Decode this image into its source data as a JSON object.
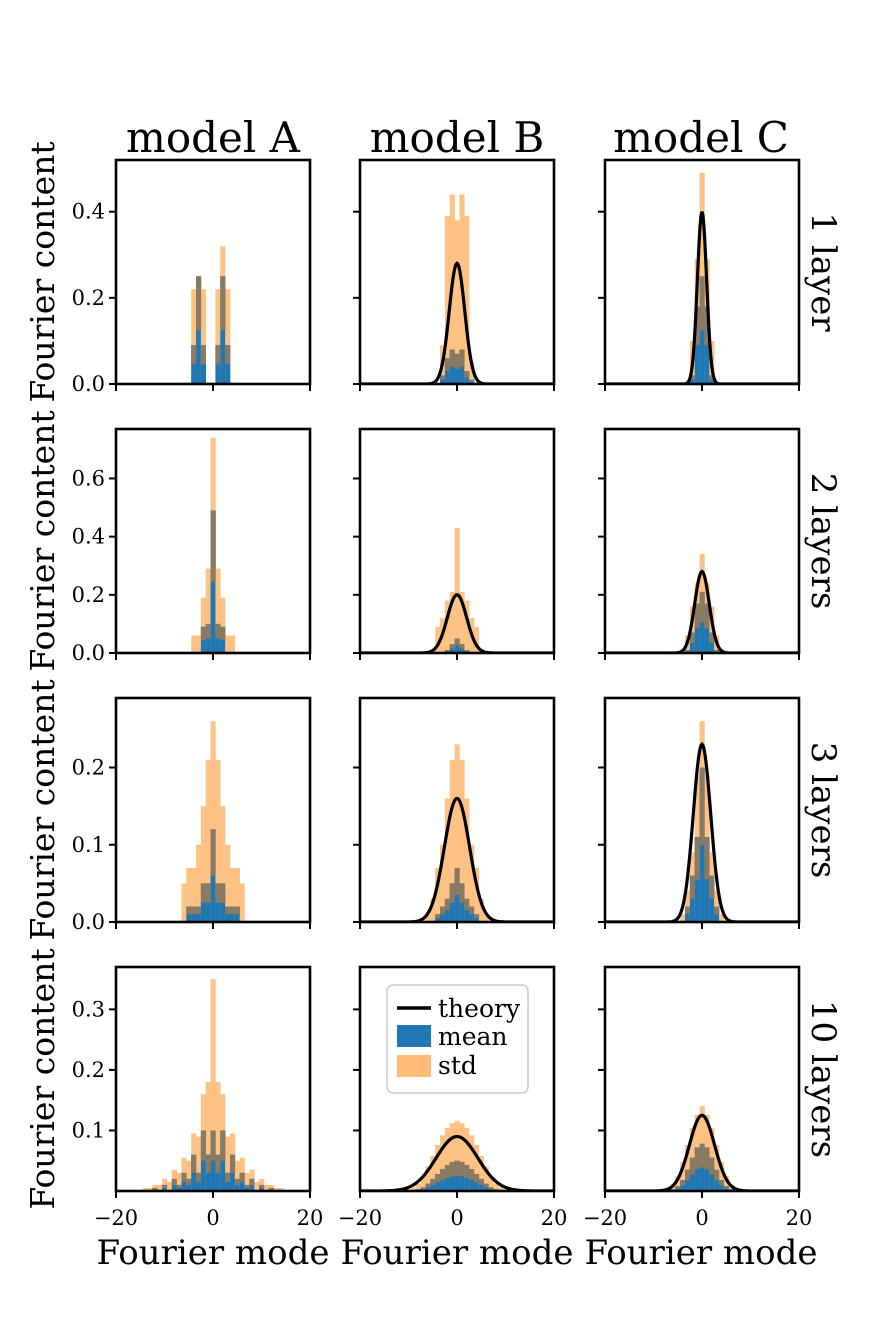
{
  "figure": {
    "columns": [
      "model A",
      "model B",
      "model C"
    ],
    "rows": [
      "1 layer",
      "2 layers",
      "3 layers",
      "10 layers"
    ],
    "ylabel": "Fourier content",
    "xlabel": "Fourier mode"
  },
  "legend": {
    "theory": "theory",
    "mean": "mean",
    "std": "std"
  },
  "colors": {
    "mean": "#1f77b4",
    "std": "#ffbb78",
    "theory": "#000000",
    "overlap": "#8f7a5f"
  },
  "chart_data": [
    {
      "type": "bar",
      "row": 0,
      "col": 0,
      "xlim": [
        -20,
        20
      ],
      "ylim": [
        0,
        0.52
      ],
      "yticks": [
        0.0,
        0.2,
        0.4
      ],
      "ytick_labels": [
        "0.0",
        "0.2",
        "0.4"
      ],
      "bins": [
        [
          -4,
          0.09,
          0.22
        ],
        [
          -3,
          0.25,
          0.25
        ],
        [
          -2,
          0.09,
          0.22
        ],
        [
          -1,
          0.0,
          0.0
        ],
        [
          0,
          0.0,
          0.0
        ],
        [
          -1.001,
          0,
          0
        ],
        [
          1,
          0.09,
          0.22
        ],
        [
          2,
          0.25,
          0.32
        ],
        [
          3,
          0.09,
          0.22
        ],
        [
          0.5,
          0,
          0
        ]
      ],
      "curve": null
    },
    {
      "type": "bar",
      "row": 0,
      "col": 1,
      "xlim": [
        -20,
        20
      ],
      "ylim": [
        0,
        0.52
      ],
      "yticks": [
        0.0,
        0.2,
        0.4
      ],
      "ytick_labels": [
        "",
        "",
        ""
      ],
      "bins": [
        [
          -3,
          0.02,
          0.09
        ],
        [
          -2,
          0.06,
          0.39
        ],
        [
          -1,
          0.08,
          0.44
        ],
        [
          0,
          0.07,
          0.38
        ],
        [
          1,
          0.08,
          0.44
        ],
        [
          2,
          0.03,
          0.39
        ],
        [
          3,
          0.01,
          0.05
        ]
      ],
      "curve": {
        "amp": 0.28,
        "sigma": 1.6
      }
    },
    {
      "type": "bar",
      "row": 0,
      "col": 2,
      "xlim": [
        -20,
        20
      ],
      "ylim": [
        0,
        0.52
      ],
      "yticks": [
        0.0,
        0.2,
        0.4
      ],
      "ytick_labels": [
        "",
        "",
        ""
      ],
      "bins": [
        [
          -2,
          0.02,
          0.1
        ],
        [
          -1,
          0.18,
          0.29
        ],
        [
          0,
          0.25,
          0.49
        ],
        [
          1,
          0.18,
          0.29
        ],
        [
          2,
          0.02,
          0.1
        ]
      ],
      "curve": {
        "amp": 0.4,
        "sigma": 0.95
      }
    },
    {
      "type": "bar",
      "row": 1,
      "col": 0,
      "xlim": [
        -20,
        20
      ],
      "ylim": [
        0,
        0.77
      ],
      "yticks": [
        0.0,
        0.2,
        0.4,
        0.6
      ],
      "ytick_labels": [
        "0.0",
        "0.2",
        "0.4",
        "0.6"
      ],
      "bins": [
        [
          -4,
          0.0,
          0.06
        ],
        [
          -3,
          0.0,
          0.06
        ],
        [
          -2,
          0.09,
          0.19
        ],
        [
          -1,
          0.1,
          0.29
        ],
        [
          0,
          0.49,
          0.74
        ],
        [
          1,
          0.1,
          0.29
        ],
        [
          2,
          0.09,
          0.19
        ],
        [
          3,
          0.0,
          0.06
        ],
        [
          4,
          0.0,
          0.06
        ]
      ],
      "curve": null
    },
    {
      "type": "bar",
      "row": 1,
      "col": 1,
      "xlim": [
        -20,
        20
      ],
      "ylim": [
        0,
        0.77
      ],
      "yticks": [
        0.0,
        0.2,
        0.4,
        0.6
      ],
      "ytick_labels": [
        "",
        "",
        "",
        ""
      ],
      "bins": [
        [
          -4,
          0.0,
          0.09
        ],
        [
          -3,
          0.0,
          0.12
        ],
        [
          -2,
          0.01,
          0.18
        ],
        [
          -1,
          0.03,
          0.21
        ],
        [
          0,
          0.05,
          0.43
        ],
        [
          1,
          0.03,
          0.21
        ],
        [
          2,
          0.01,
          0.18
        ],
        [
          3,
          0.0,
          0.12
        ],
        [
          4,
          0.0,
          0.09
        ]
      ],
      "curve": {
        "amp": 0.2,
        "sigma": 2.0
      }
    },
    {
      "type": "bar",
      "row": 1,
      "col": 2,
      "xlim": [
        -20,
        20
      ],
      "ylim": [
        0,
        0.77
      ],
      "yticks": [
        0.0,
        0.2,
        0.4,
        0.6
      ],
      "ytick_labels": [
        "",
        "",
        "",
        ""
      ],
      "bins": [
        [
          -3,
          0.01,
          0.06
        ],
        [
          -2,
          0.07,
          0.16
        ],
        [
          -1,
          0.17,
          0.24
        ],
        [
          0,
          0.21,
          0.34
        ],
        [
          1,
          0.17,
          0.24
        ],
        [
          2,
          0.07,
          0.16
        ],
        [
          3,
          0.01,
          0.06
        ]
      ],
      "curve": {
        "amp": 0.28,
        "sigma": 1.5
      }
    },
    {
      "type": "bar",
      "row": 2,
      "col": 0,
      "xlim": [
        -20,
        20
      ],
      "ylim": [
        0,
        0.29
      ],
      "yticks": [
        0.0,
        0.1,
        0.2
      ],
      "ytick_labels": [
        "0.0",
        "0.1",
        "0.2"
      ],
      "bins": [
        [
          -6,
          0.0,
          0.05
        ],
        [
          -5,
          0.02,
          0.07
        ],
        [
          -4,
          0.02,
          0.07
        ],
        [
          -3,
          0.02,
          0.1
        ],
        [
          -2,
          0.05,
          0.15
        ],
        [
          -1,
          0.05,
          0.21
        ],
        [
          0,
          0.12,
          0.26
        ],
        [
          1,
          0.05,
          0.21
        ],
        [
          2,
          0.05,
          0.15
        ],
        [
          3,
          0.02,
          0.1
        ],
        [
          4,
          0.02,
          0.07
        ],
        [
          5,
          0.02,
          0.07
        ],
        [
          6,
          0.0,
          0.05
        ]
      ],
      "curve": null
    },
    {
      "type": "bar",
      "row": 2,
      "col": 1,
      "xlim": [
        -20,
        20
      ],
      "ylim": [
        0,
        0.29
      ],
      "yticks": [
        0.0,
        0.1,
        0.2
      ],
      "ytick_labels": [
        "",
        "",
        ""
      ],
      "bins": [
        [
          -6,
          0.0,
          0.01
        ],
        [
          -5,
          0.0,
          0.03
        ],
        [
          -4,
          0.01,
          0.07
        ],
        [
          -3,
          0.02,
          0.1
        ],
        [
          -2,
          0.03,
          0.16
        ],
        [
          -1,
          0.05,
          0.21
        ],
        [
          0,
          0.07,
          0.23
        ],
        [
          1,
          0.05,
          0.21
        ],
        [
          2,
          0.03,
          0.16
        ],
        [
          3,
          0.02,
          0.1
        ],
        [
          4,
          0.01,
          0.07
        ],
        [
          5,
          0.0,
          0.03
        ],
        [
          6,
          0.0,
          0.01
        ]
      ],
      "curve": {
        "amp": 0.16,
        "sigma": 2.6
      }
    },
    {
      "type": "bar",
      "row": 2,
      "col": 2,
      "xlim": [
        -20,
        20
      ],
      "ylim": [
        0,
        0.29
      ],
      "yticks": [
        0.0,
        0.1,
        0.2
      ],
      "ytick_labels": [
        "",
        "",
        ""
      ],
      "bins": [
        [
          -4,
          0.0,
          0.01
        ],
        [
          -3,
          0.02,
          0.04
        ],
        [
          -2,
          0.06,
          0.09
        ],
        [
          -1,
          0.11,
          0.19
        ],
        [
          0,
          0.2,
          0.26
        ],
        [
          1,
          0.11,
          0.19
        ],
        [
          2,
          0.06,
          0.09
        ],
        [
          3,
          0.02,
          0.04
        ],
        [
          4,
          0.0,
          0.01
        ]
      ],
      "curve": {
        "amp": 0.23,
        "sigma": 1.8
      }
    },
    {
      "type": "bar",
      "row": 3,
      "col": 0,
      "xlim": [
        -20,
        20
      ],
      "ylim": [
        0,
        0.37
      ],
      "yticks": [
        0.1,
        0.2,
        0.3
      ],
      "ytick_labels": [
        "0.1",
        "0.2",
        "0.3"
      ],
      "bins": [
        [
          -14,
          0.0,
          0.005
        ],
        [
          -13,
          0.0,
          0.005
        ],
        [
          -12,
          0.005,
          0.01
        ],
        [
          -11,
          0.0,
          0.01
        ],
        [
          -10,
          0.01,
          0.02
        ],
        [
          -9,
          0.0,
          0.015
        ],
        [
          -8,
          0.02,
          0.035
        ],
        [
          -7,
          0.01,
          0.03
        ],
        [
          -6,
          0.03,
          0.055
        ],
        [
          -5,
          0.02,
          0.05
        ],
        [
          -4,
          0.06,
          0.095
        ],
        [
          -3,
          0.03,
          0.09
        ],
        [
          -2,
          0.1,
          0.16
        ],
        [
          -1,
          0.06,
          0.18
        ],
        [
          0,
          0.1,
          0.35
        ],
        [
          1,
          0.06,
          0.18
        ],
        [
          2,
          0.1,
          0.16
        ],
        [
          3,
          0.03,
          0.09
        ],
        [
          4,
          0.06,
          0.095
        ],
        [
          5,
          0.02,
          0.05
        ],
        [
          6,
          0.03,
          0.055
        ],
        [
          7,
          0.01,
          0.03
        ],
        [
          8,
          0.02,
          0.035
        ],
        [
          9,
          0.0,
          0.015
        ],
        [
          10,
          0.01,
          0.02
        ],
        [
          11,
          0.0,
          0.01
        ],
        [
          12,
          0.005,
          0.01
        ],
        [
          13,
          0.0,
          0.005
        ],
        [
          14,
          0.0,
          0.005
        ]
      ],
      "curve": null
    },
    {
      "type": "bar",
      "row": 3,
      "col": 1,
      "xlim": [
        -20,
        20
      ],
      "ylim": [
        0,
        0.37
      ],
      "yticks": [
        0.1,
        0.2,
        0.3
      ],
      "ytick_labels": [
        "",
        "",
        ""
      ],
      "bins": [
        [
          -10,
          0.0,
          0.002
        ],
        [
          -9,
          0.001,
          0.006
        ],
        [
          -8,
          0.003,
          0.012
        ],
        [
          -7,
          0.006,
          0.024
        ],
        [
          -6,
          0.012,
          0.04
        ],
        [
          -5,
          0.02,
          0.058
        ],
        [
          -4,
          0.028,
          0.076
        ],
        [
          -3,
          0.036,
          0.092
        ],
        [
          -2,
          0.043,
          0.104
        ],
        [
          -1,
          0.048,
          0.112
        ],
        [
          0,
          0.05,
          0.116
        ],
        [
          1,
          0.048,
          0.112
        ],
        [
          2,
          0.043,
          0.104
        ],
        [
          3,
          0.036,
          0.092
        ],
        [
          4,
          0.028,
          0.076
        ],
        [
          5,
          0.02,
          0.058
        ],
        [
          6,
          0.012,
          0.04
        ],
        [
          7,
          0.006,
          0.024
        ],
        [
          8,
          0.003,
          0.012
        ],
        [
          9,
          0.001,
          0.006
        ],
        [
          10,
          0.0,
          0.002
        ]
      ],
      "curve": {
        "amp": 0.09,
        "sigma": 4.3
      }
    },
    {
      "type": "bar",
      "row": 3,
      "col": 2,
      "xlim": [
        -20,
        20
      ],
      "ylim": [
        0,
        0.37
      ],
      "yticks": [
        0.1,
        0.2,
        0.3
      ],
      "ytick_labels": [
        "",
        "",
        ""
      ],
      "bins": [
        [
          -7,
          0.0,
          0.003
        ],
        [
          -6,
          0.003,
          0.01
        ],
        [
          -5,
          0.008,
          0.025
        ],
        [
          -4,
          0.018,
          0.048
        ],
        [
          -3,
          0.035,
          0.076
        ],
        [
          -2,
          0.055,
          0.104
        ],
        [
          -1,
          0.072,
          0.126
        ],
        [
          0,
          0.078,
          0.14
        ],
        [
          1,
          0.072,
          0.126
        ],
        [
          2,
          0.055,
          0.104
        ],
        [
          3,
          0.035,
          0.076
        ],
        [
          4,
          0.018,
          0.048
        ],
        [
          5,
          0.008,
          0.025
        ],
        [
          6,
          0.003,
          0.01
        ],
        [
          7,
          0.0,
          0.003
        ]
      ],
      "curve": {
        "amp": 0.125,
        "sigma": 2.6
      }
    }
  ],
  "xticks": [
    -20,
    0,
    20
  ],
  "xtick_labels": [
    "−20",
    "0",
    "20"
  ]
}
